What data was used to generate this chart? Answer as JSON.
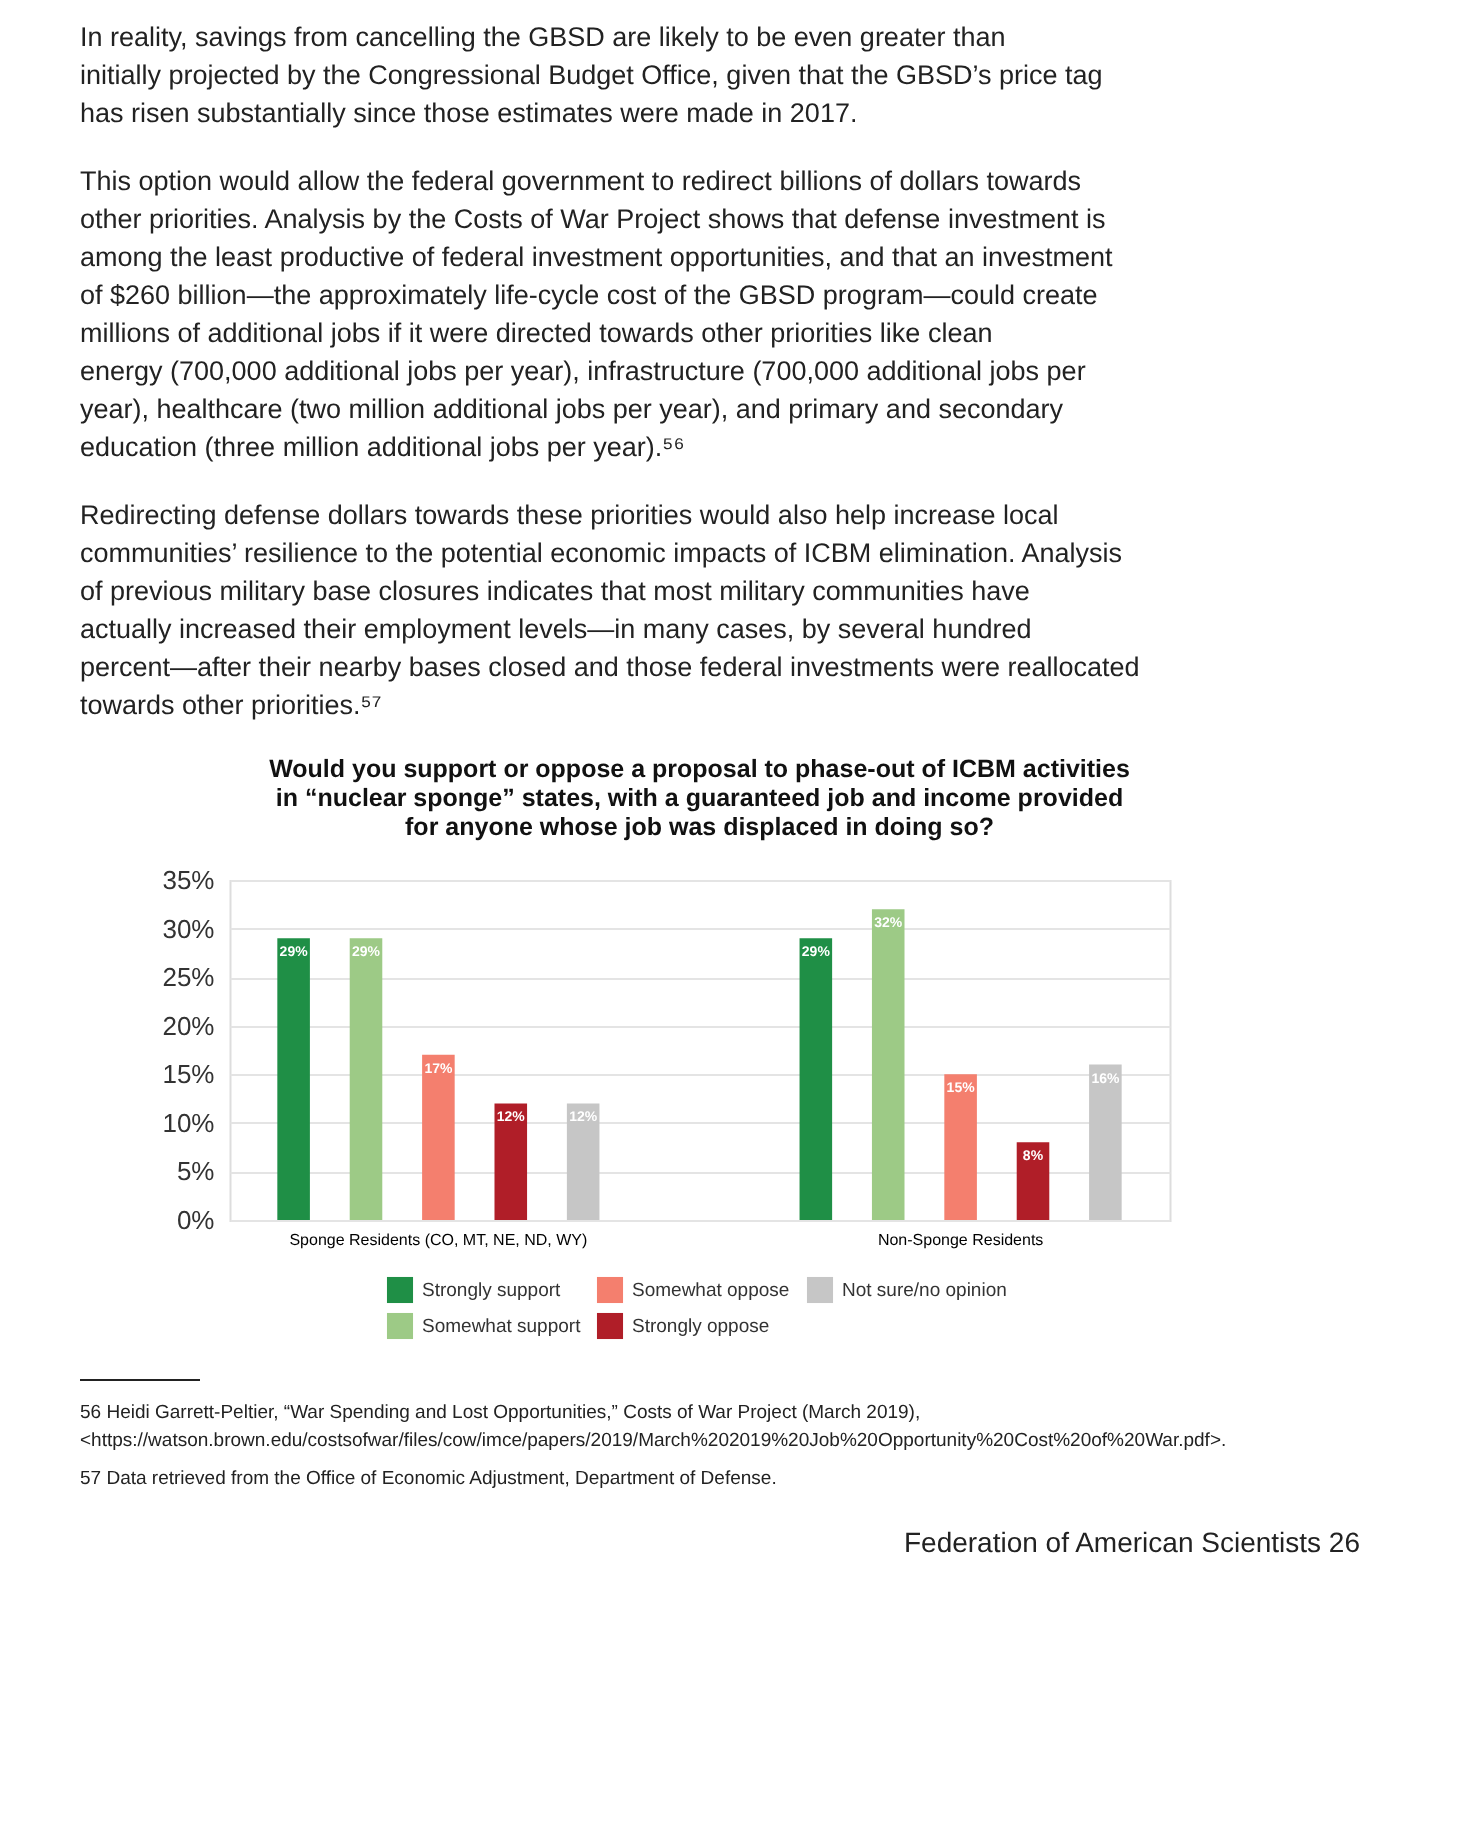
{
  "chart_data": {
    "type": "bar",
    "title": "Would you support or oppose a proposal to phase-out of ICBM activities in “nuclear sponge” states, with a guaranteed job and income provided for anyone whose job was displaced in doing so?",
    "categories": [
      "Sponge Residents (CO, MT, NE, ND, WY)",
      "Non-Sponge Residents"
    ],
    "series": [
      {
        "name": "Strongly support",
        "color": "#1f8f46",
        "values": [
          29,
          29
        ],
        "value_labels": [
          "29%",
          "29%"
        ]
      },
      {
        "name": "Somewhat support",
        "color": "#9dca86",
        "values": [
          29,
          32
        ],
        "value_labels": [
          "29%",
          "32%"
        ]
      },
      {
        "name": "Somewhat oppose",
        "color": "#f47f6e",
        "values": [
          17,
          15
        ],
        "value_labels": [
          "17%",
          "15%"
        ]
      },
      {
        "name": "Strongly oppose",
        "color": "#b01e28",
        "values": [
          12,
          8
        ],
        "value_labels": [
          "12%",
          "8%"
        ]
      },
      {
        "name": "Not sure/no opinion",
        "color": "#c6c6c6",
        "values": [
          12,
          16
        ],
        "value_labels": [
          "12%",
          "16%"
        ]
      }
    ],
    "ylim": [
      0,
      35
    ],
    "yticks": [
      {
        "value": 0,
        "label": "0%"
      },
      {
        "value": 5,
        "label": "5%"
      },
      {
        "value": 10,
        "label": "10%"
      },
      {
        "value": 15,
        "label": "15%"
      },
      {
        "value": 20,
        "label": "20%"
      },
      {
        "value": 25,
        "label": "25%"
      },
      {
        "value": 30,
        "label": "30%"
      },
      {
        "value": 35,
        "label": "35%"
      }
    ],
    "grid": "y",
    "legend": "bottom",
    "annotations": [
      "In reality, savings from cancelling the GBSD are likely to be even greater than initially projected by the Congressional Budget Office, given that the GBSD’s price tag has risen substantially since those estimates were made in 2017.",
      "This option would allow the federal government to redirect billions of dollars towards other priorities. Analysis by the Costs of War Project shows that defense investment is among the least productive of federal investment opportunities, and that an investment of $260 billion—the approximately life-cycle cost of the GBSD program—could create millions of additional jobs if it were directed towards other priorities like clean energy (700,000 additional jobs per year), infrastructure (700,000 additional jobs per year), healthcare (two million additional jobs per year), and primary and secondary education (three million additional jobs per year).⁵⁶",
      "Redirecting defense dollars towards these priorities would also help increase local communities’ resilience to the potential economic impacts of ICBM elimination. Analysis of previous military base closures indicates that most military communities have actually increased their employment levels—in many cases, by several hundred percent—after their nearby bases closed and those federal investments were reallocated towards other priorities.⁵⁷",
      "56 Heidi Garrett-Peltier, “War Spending and Lost Opportunities,” Costs of War Project (March 2019), <https://watson.brown.edu/costsofwar/files/cow/imce/papers/2019/March%202019%20Job%20Opportunity%20Cost%20of%20War.pdf>.",
      "57 Data retrieved from the Office of Economic Adjustment, Department of Defense.",
      "Federation of American Scientists    26"
    ]
  }
}
